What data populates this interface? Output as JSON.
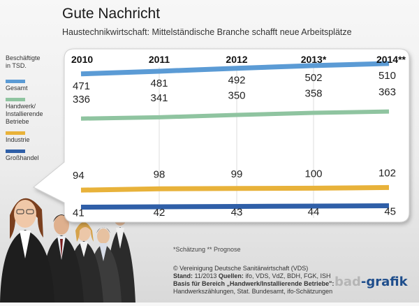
{
  "header": {
    "title": "Gute Nachricht",
    "subtitle": "Haustechnikwirtschaft: Mittelständische Branche schafft neue Arbeitsplätze"
  },
  "legend": {
    "heading_line1": "Beschäftigte",
    "heading_line2": "in TSD.",
    "items": [
      {
        "label_lines": [
          "Gesamt"
        ],
        "color": "#5b9bd5"
      },
      {
        "label_lines": [
          "Handwerk/",
          "Installierende",
          "Betriebe"
        ],
        "color": "#8fc4a0"
      },
      {
        "label_lines": [
          "Industrie"
        ],
        "color": "#e8b23a"
      },
      {
        "label_lines": [
          "Großhandel"
        ],
        "color": "#2f5fa8"
      }
    ]
  },
  "chart_data": {
    "type": "line",
    "categories": [
      "2010",
      "2011",
      "2012",
      "2013*",
      "2014**"
    ],
    "series": [
      {
        "name": "Gesamt",
        "values": [
          471,
          481,
          492,
          502,
          510
        ],
        "color": "#5b9bd5"
      },
      {
        "name": "Handwerk/Installierende Betriebe",
        "values": [
          336,
          341,
          350,
          358,
          363
        ],
        "color": "#8fc4a0"
      },
      {
        "name": "Industrie",
        "values": [
          94,
          98,
          99,
          100,
          102
        ],
        "color": "#e8b23a"
      },
      {
        "name": "Großhandel",
        "values": [
          41,
          42,
          43,
          44,
          45
        ],
        "color": "#2f5fa8"
      }
    ],
    "ylabel": "Beschäftigte in TSD.",
    "grid": true,
    "legend_position": "left"
  },
  "footer": {
    "notes": "*Schätzung     ** Prognose",
    "copyright": "© Vereinigung Deutsche Sanitärwirtschaft (VDS)",
    "stand_label": "Stand:",
    "stand_value": "11/2013",
    "quellen_label": "Quellen:",
    "quellen_value": "ifo, VDS, VdZ, BDH, FGK, ISH",
    "basis_label": "Basis für Bereich „Handwerk/Installierende Betriebe\":",
    "basis_value": "Handwerkszählungen, Stat. Bundesamt, ifo-Schätzungen"
  },
  "logo": {
    "part1": "bad",
    "part2": "-grafik"
  }
}
